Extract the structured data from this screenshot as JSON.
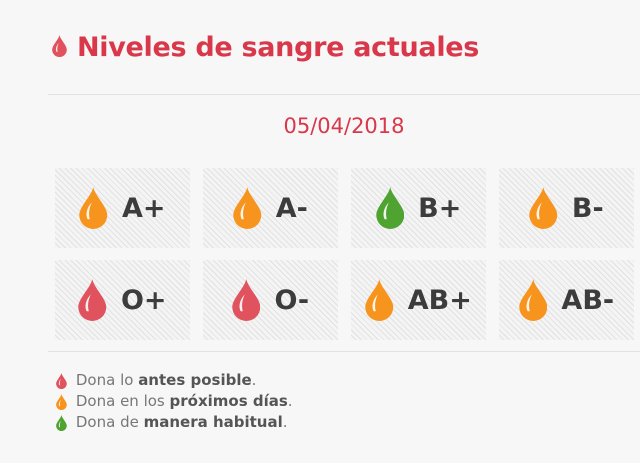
{
  "header": {
    "title": "Niveles de sangre actuales"
  },
  "date": "05/04/2018",
  "colors": {
    "red": "#e0525e",
    "orange": "#f7941d",
    "green": "#4ea331"
  },
  "blood_types": [
    {
      "label": "A+",
      "status": "orange"
    },
    {
      "label": "A-",
      "status": "orange"
    },
    {
      "label": "B+",
      "status": "green"
    },
    {
      "label": "B-",
      "status": "orange"
    },
    {
      "label": "O+",
      "status": "red"
    },
    {
      "label": "O-",
      "status": "red"
    },
    {
      "label": "AB+",
      "status": "orange"
    },
    {
      "label": "AB-",
      "status": "orange"
    }
  ],
  "legend": [
    {
      "status": "red",
      "prefix": "Dona lo ",
      "bold": "antes posible",
      "suffix": "."
    },
    {
      "status": "orange",
      "prefix": "Dona en los ",
      "bold": "próximos días",
      "suffix": "."
    },
    {
      "status": "green",
      "prefix": "Dona de ",
      "bold": "manera habitual",
      "suffix": "."
    }
  ]
}
